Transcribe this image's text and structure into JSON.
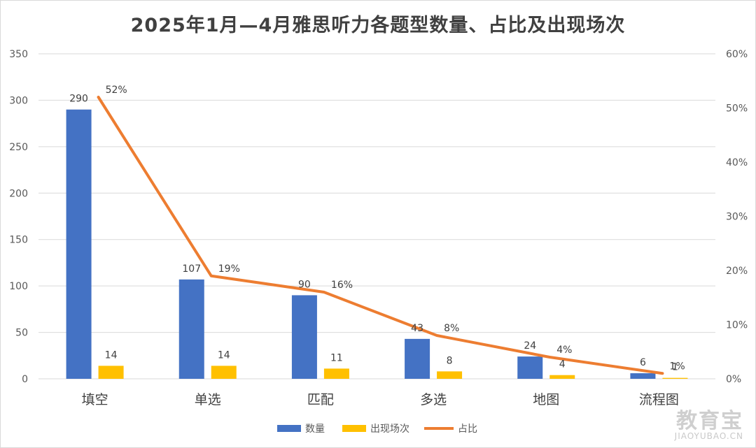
{
  "chart_data": {
    "type": "bar",
    "title": "2025年1月—4月雅思听力各题型数量、占比及出现场次",
    "categories": [
      "填空",
      "单选",
      "匹配",
      "多选",
      "地图",
      "流程图"
    ],
    "series": [
      {
        "name": "数量",
        "type": "bar",
        "axis": "left",
        "color": "#4472C4",
        "values": [
          290,
          107,
          90,
          43,
          24,
          6
        ]
      },
      {
        "name": "出现场次",
        "type": "bar",
        "axis": "left",
        "color": "#FFC000",
        "values": [
          14,
          14,
          11,
          8,
          4,
          1
        ]
      },
      {
        "name": "占比",
        "type": "line",
        "axis": "right",
        "color": "#ED7D31",
        "values": [
          0.52,
          0.19,
          0.16,
          0.08,
          0.04,
          0.01
        ],
        "labels": [
          "52%",
          "19%",
          "16%",
          "8%",
          "4%",
          "1%"
        ]
      }
    ],
    "y_left": {
      "min": 0,
      "max": 350,
      "ticks": [
        "0",
        "50",
        "100",
        "150",
        "200",
        "250",
        "300",
        "350"
      ]
    },
    "y_right": {
      "min": 0,
      "max": 0.6,
      "ticks": [
        "0%",
        "10%",
        "20%",
        "30%",
        "40%",
        "50%",
        "60%"
      ]
    },
    "grid": true,
    "legend_position": "bottom"
  },
  "watermark": {
    "text": "教育宝",
    "subtext": "JIAOYUBAO.CN"
  }
}
